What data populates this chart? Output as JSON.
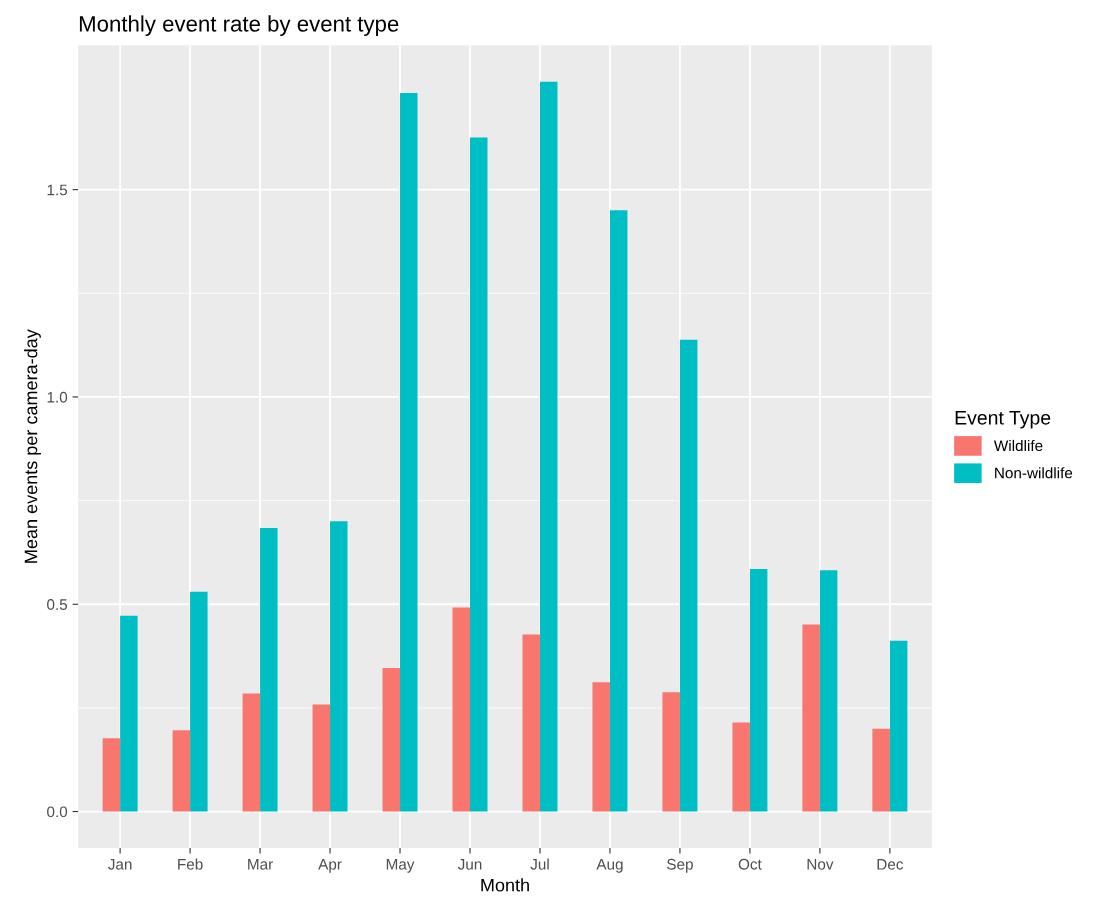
{
  "chart_data": {
    "type": "bar",
    "title": "Monthly event rate by event type",
    "xlabel": "Month",
    "ylabel": "Mean events per camera-day",
    "legend_title": "Event Type",
    "legend": "right",
    "grid": true,
    "categories": [
      "Jan",
      "Feb",
      "Mar",
      "Apr",
      "May",
      "Jun",
      "Jul",
      "Aug",
      "Sep",
      "Oct",
      "Nov",
      "Dec"
    ],
    "ylim": [
      -0.088,
      1.848
    ],
    "yticks": [
      {
        "value": 0,
        "label": "0.0"
      },
      0.5,
      {
        "value": 1,
        "label": "1.0"
      },
      1.5
    ],
    "series": [
      {
        "name": "Wildlife",
        "color": "#f8766d",
        "values": [
          0.177,
          0.196,
          0.285,
          0.258,
          0.346,
          0.492,
          0.427,
          0.312,
          0.288,
          0.215,
          0.451,
          0.2
        ]
      },
      {
        "name": "Non-wildlife",
        "color": "#00bfc4",
        "values": [
          0.472,
          0.53,
          0.684,
          0.7,
          1.733,
          1.626,
          1.76,
          1.45,
          1.138,
          0.585,
          0.582,
          0.412
        ]
      }
    ]
  }
}
